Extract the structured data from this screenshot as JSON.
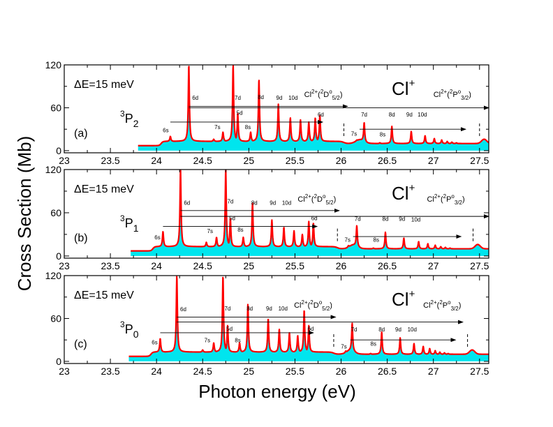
{
  "figure": {
    "ylabel": "Cross Section (Mb)",
    "xlabel": "Photon energy (eV)"
  },
  "colors": {
    "fill": "#00e5ee",
    "line": "#ff0000",
    "axis": "#000000"
  },
  "chart_data": [
    {
      "type": "line",
      "panel_label": "(a)",
      "energy_label": "ΔE=15 meV",
      "ion_label": "Cl",
      "ion_sup": "+",
      "state_base": "P",
      "state_sup": "3",
      "state_sub": "2",
      "thr1_pre": "Cl",
      "thr1_sup1": "2+",
      "thr1_mid": "(",
      "thr1_sup2": "2",
      "thr1_core": "D",
      "thr1_sup3": "o",
      "thr1_sub": "5/2",
      "thr1_post": ")",
      "thr2_pre": "Cl",
      "thr2_sup1": "2+",
      "thr2_mid": "(",
      "thr2_sup2": "2",
      "thr2_core": "P",
      "thr2_sup3": "o",
      "thr2_sub": "3/2",
      "thr2_post": ")",
      "xlim": [
        23,
        27.6
      ],
      "ylim": [
        -3,
        120
      ],
      "xticks": [
        23,
        23.5,
        24,
        24.5,
        25,
        25.5,
        26,
        26.5,
        27,
        27.5
      ],
      "xtick_labels": [
        "23",
        "23.5",
        "24",
        "24.5",
        "25",
        "25.5",
        "26",
        "26.5",
        "27",
        "27.5"
      ],
      "yticks": [
        0,
        60,
        120
      ],
      "ytick_labels": [
        "0",
        "60",
        "120"
      ],
      "x_start": 23.8,
      "x_end": 27.6,
      "baseline": 7,
      "onset": 24.05,
      "plateau": 13,
      "threshold1": 26.03,
      "threshold2": 27.5,
      "bump1": 26.2,
      "bump2": 27.55,
      "peaks": [
        {
          "x": 24.15,
          "y": 20
        },
        {
          "x": 24.35,
          "y": 120
        },
        {
          "x": 24.62,
          "y": 16
        },
        {
          "x": 24.72,
          "y": 26
        },
        {
          "x": 24.83,
          "y": 120
        },
        {
          "x": 24.88,
          "y": 52
        },
        {
          "x": 25.02,
          "y": 26
        },
        {
          "x": 25.11,
          "y": 100
        },
        {
          "x": 25.32,
          "y": 65
        },
        {
          "x": 25.45,
          "y": 46
        },
        {
          "x": 25.56,
          "y": 43
        },
        {
          "x": 25.65,
          "y": 40
        },
        {
          "x": 25.72,
          "y": 46
        },
        {
          "x": 25.77,
          "y": 50
        },
        {
          "x": 26.17,
          "y": 14
        },
        {
          "x": 26.25,
          "y": 40
        },
        {
          "x": 26.42,
          "y": 14
        },
        {
          "x": 26.55,
          "y": 37
        },
        {
          "x": 26.76,
          "y": 30
        },
        {
          "x": 26.91,
          "y": 24
        },
        {
          "x": 27.01,
          "y": 20
        },
        {
          "x": 27.09,
          "y": 18
        },
        {
          "x": 27.15,
          "y": 16
        },
        {
          "x": 27.2,
          "y": 15
        },
        {
          "x": 27.25,
          "y": 14
        },
        {
          "x": 27.29,
          "y": 13
        }
      ],
      "arrows": [
        {
          "y": 62,
          "x1": 24.35,
          "x2": 26.07
        },
        {
          "y": 40,
          "x1": 24.15,
          "x2": 25.8
        },
        {
          "y": 60,
          "x1": 24.35,
          "x2": 27.6
        },
        {
          "y": 30,
          "x1": 26.2,
          "x2": 27.35
        }
      ],
      "series_labels": [
        {
          "text": "6d",
          "x": 24.42,
          "y": 71
        },
        {
          "text": "7d",
          "x": 24.88,
          "y": 71
        },
        {
          "text": "8d",
          "x": 25.13,
          "y": 72
        },
        {
          "text": "9d",
          "x": 25.33,
          "y": 71
        },
        {
          "text": "10d",
          "x": 25.48,
          "y": 71
        },
        {
          "text": "6s",
          "x": 24.1,
          "y": 26
        },
        {
          "text": "7s",
          "x": 24.66,
          "y": 30
        },
        {
          "text": "5d",
          "x": 24.9,
          "y": 50
        },
        {
          "text": "8s",
          "x": 24.99,
          "y": 30
        },
        {
          "text": "6d",
          "x": 25.78,
          "y": 48
        },
        {
          "text": "7s",
          "x": 26.14,
          "y": 21
        },
        {
          "text": "7d",
          "x": 26.25,
          "y": 48
        },
        {
          "text": "8s",
          "x": 26.45,
          "y": 20
        },
        {
          "text": "8d",
          "x": 26.55,
          "y": 48
        },
        {
          "text": "9d",
          "x": 26.74,
          "y": 48
        },
        {
          "text": "10d",
          "x": 26.88,
          "y": 48
        }
      ]
    },
    {
      "type": "line",
      "panel_label": "(b)",
      "energy_label": "ΔE=15 meV",
      "ion_label": "Cl",
      "ion_sup": "+",
      "state_base": "P",
      "state_sup": "3",
      "state_sub": "1",
      "thr1_pre": "Cl",
      "thr1_sup1": "2+",
      "thr1_mid": "(",
      "thr1_sup2": "2",
      "thr1_core": "D",
      "thr1_sup3": "o",
      "thr1_sub": "5/2",
      "thr1_post": ")",
      "thr2_pre": "Cl",
      "thr2_sup1": "2+",
      "thr2_mid": "(",
      "thr2_sup2": "2",
      "thr2_core": "P",
      "thr2_sup3": "o",
      "thr2_sub": "3/2",
      "thr2_post": ")",
      "xlim": [
        23,
        27.6
      ],
      "ylim": [
        -3,
        120
      ],
      "xticks": [
        23,
        23.5,
        24,
        24.5,
        25,
        25.5,
        26,
        26.5,
        27,
        27.5
      ],
      "xtick_labels": [
        "23",
        "23.5",
        "24",
        "24.5",
        "25",
        "25.5",
        "26",
        "26.5",
        "27",
        "27.5"
      ],
      "yticks": [
        0,
        60,
        120
      ],
      "ytick_labels": [
        "0",
        "60",
        "120"
      ],
      "x_start": 23.72,
      "x_end": 27.6,
      "baseline": 7,
      "onset": 23.96,
      "plateau": 13,
      "threshold1": 25.96,
      "threshold2": 27.43,
      "bump1": 26.13,
      "bump2": 27.48,
      "peaks": [
        {
          "x": 24.07,
          "y": 34
        },
        {
          "x": 24.26,
          "y": 120
        },
        {
          "x": 24.54,
          "y": 19
        },
        {
          "x": 24.65,
          "y": 26
        },
        {
          "x": 24.75,
          "y": 120
        },
        {
          "x": 24.8,
          "y": 52
        },
        {
          "x": 24.94,
          "y": 26
        },
        {
          "x": 25.04,
          "y": 74
        },
        {
          "x": 25.25,
          "y": 50
        },
        {
          "x": 25.38,
          "y": 40
        },
        {
          "x": 25.49,
          "y": 35
        },
        {
          "x": 25.58,
          "y": 30
        },
        {
          "x": 25.65,
          "y": 48
        },
        {
          "x": 25.7,
          "y": 46
        },
        {
          "x": 26.08,
          "y": 15
        },
        {
          "x": 26.17,
          "y": 42
        },
        {
          "x": 26.35,
          "y": 14
        },
        {
          "x": 26.48,
          "y": 36
        },
        {
          "x": 26.68,
          "y": 28
        },
        {
          "x": 26.84,
          "y": 23
        },
        {
          "x": 26.94,
          "y": 20
        },
        {
          "x": 27.02,
          "y": 18
        },
        {
          "x": 27.08,
          "y": 16
        },
        {
          "x": 27.13,
          "y": 15
        },
        {
          "x": 27.18,
          "y": 14
        },
        {
          "x": 27.22,
          "y": 13
        }
      ],
      "arrows": [
        {
          "y": 63,
          "x1": 24.26,
          "x2": 25.98
        },
        {
          "y": 41,
          "x1": 24.07,
          "x2": 25.74
        },
        {
          "y": 55,
          "x1": 24.26,
          "x2": 27.6
        },
        {
          "y": 27,
          "x1": 26.13,
          "x2": 27.3
        }
      ],
      "series_labels": [
        {
          "text": "6d",
          "x": 24.33,
          "y": 71
        },
        {
          "text": "7d",
          "x": 24.8,
          "y": 73
        },
        {
          "text": "8d",
          "x": 25.06,
          "y": 71
        },
        {
          "text": "9d",
          "x": 25.26,
          "y": 71
        },
        {
          "text": "10d",
          "x": 25.41,
          "y": 71
        },
        {
          "text": "6s",
          "x": 24.01,
          "y": 23
        },
        {
          "text": "7s",
          "x": 24.58,
          "y": 32
        },
        {
          "text": "5d",
          "x": 24.82,
          "y": 50
        },
        {
          "text": "8s",
          "x": 24.91,
          "y": 34
        },
        {
          "text": "6d",
          "x": 25.71,
          "y": 50
        },
        {
          "text": "7s",
          "x": 26.07,
          "y": 20
        },
        {
          "text": "7d",
          "x": 26.18,
          "y": 49
        },
        {
          "text": "8s",
          "x": 26.38,
          "y": 20
        },
        {
          "text": "8d",
          "x": 26.48,
          "y": 49
        },
        {
          "text": "9d",
          "x": 26.66,
          "y": 49
        },
        {
          "text": "10d",
          "x": 26.81,
          "y": 48
        }
      ]
    },
    {
      "type": "line",
      "panel_label": "(c)",
      "energy_label": "ΔE=15 meV",
      "ion_label": "Cl",
      "ion_sup": "+",
      "state_base": "P",
      "state_sup": "3",
      "state_sub": "0",
      "thr1_pre": "Cl",
      "thr1_sup1": "2+",
      "thr1_mid": "(",
      "thr1_sup2": "2",
      "thr1_core": "D",
      "thr1_sup3": "o",
      "thr1_sub": "5/2",
      "thr1_post": ")",
      "thr2_pre": "Cl",
      "thr2_sup1": "2+",
      "thr2_mid": "(",
      "thr2_sup2": "2",
      "thr2_core": "P",
      "thr2_sup3": "o",
      "thr2_sub": "3/2",
      "thr2_post": ")",
      "xlim": [
        23,
        27.6
      ],
      "ylim": [
        -3,
        120
      ],
      "xticks": [
        23,
        23.5,
        24,
        24.5,
        25,
        25.5,
        26,
        26.5,
        27,
        27.5
      ],
      "xtick_labels": [
        "23",
        "23.5",
        "24",
        "24.5",
        "25",
        "25.5",
        "26",
        "26.5",
        "27",
        "27.5"
      ],
      "yticks": [
        0,
        60,
        120
      ],
      "ytick_labels": [
        "0",
        "60",
        "120"
      ],
      "x_start": 23.7,
      "x_end": 27.6,
      "baseline": 7,
      "onset": 23.94,
      "plateau": 13,
      "threshold1": 25.92,
      "threshold2": 27.37,
      "bump1": 26.1,
      "bump2": 27.42,
      "peaks": [
        {
          "x": 24.04,
          "y": 32
        },
        {
          "x": 24.22,
          "y": 120
        },
        {
          "x": 24.5,
          "y": 16
        },
        {
          "x": 24.62,
          "y": 26
        },
        {
          "x": 24.72,
          "y": 120
        },
        {
          "x": 24.77,
          "y": 50
        },
        {
          "x": 24.9,
          "y": 26
        },
        {
          "x": 24.99,
          "y": 80
        },
        {
          "x": 25.21,
          "y": 60
        },
        {
          "x": 25.33,
          "y": 45
        },
        {
          "x": 25.44,
          "y": 40
        },
        {
          "x": 25.53,
          "y": 36
        },
        {
          "x": 25.6,
          "y": 72
        },
        {
          "x": 25.65,
          "y": 50
        },
        {
          "x": 26.05,
          "y": 15
        },
        {
          "x": 26.12,
          "y": 52
        },
        {
          "x": 26.32,
          "y": 14
        },
        {
          "x": 26.44,
          "y": 44
        },
        {
          "x": 26.64,
          "y": 36
        },
        {
          "x": 26.79,
          "y": 28
        },
        {
          "x": 26.89,
          "y": 24
        },
        {
          "x": 26.96,
          "y": 21
        },
        {
          "x": 27.02,
          "y": 18
        },
        {
          "x": 27.07,
          "y": 16
        },
        {
          "x": 27.12,
          "y": 15
        },
        {
          "x": 27.16,
          "y": 14
        }
      ],
      "arrows": [
        {
          "y": 62,
          "x1": 24.22,
          "x2": 25.94
        },
        {
          "y": 40,
          "x1": 24.04,
          "x2": 25.7
        },
        {
          "y": 55,
          "x1": 24.22,
          "x2": 27.32
        },
        {
          "y": 30,
          "x1": 26.1,
          "x2": 27.24
        }
      ],
      "series_labels": [
        {
          "text": "6d",
          "x": 24.29,
          "y": 70
        },
        {
          "text": "7d",
          "x": 24.77,
          "y": 71
        },
        {
          "text": "8d",
          "x": 25.01,
          "y": 71
        },
        {
          "text": "9d",
          "x": 25.22,
          "y": 71
        },
        {
          "text": "10d",
          "x": 25.37,
          "y": 71
        },
        {
          "text": "6s",
          "x": 23.98,
          "y": 24
        },
        {
          "text": "7s",
          "x": 24.55,
          "y": 27
        },
        {
          "text": "5d",
          "x": 24.79,
          "y": 43
        },
        {
          "text": "8s",
          "x": 24.88,
          "y": 27
        },
        {
          "text": "6d",
          "x": 25.67,
          "y": 43
        },
        {
          "text": "7s",
          "x": 26.03,
          "y": 18
        },
        {
          "text": "7d",
          "x": 26.14,
          "y": 42
        },
        {
          "text": "8s",
          "x": 26.35,
          "y": 22
        },
        {
          "text": "8d",
          "x": 26.44,
          "y": 42
        },
        {
          "text": "9d",
          "x": 26.62,
          "y": 42
        },
        {
          "text": "10d",
          "x": 26.77,
          "y": 42
        }
      ]
    }
  ]
}
